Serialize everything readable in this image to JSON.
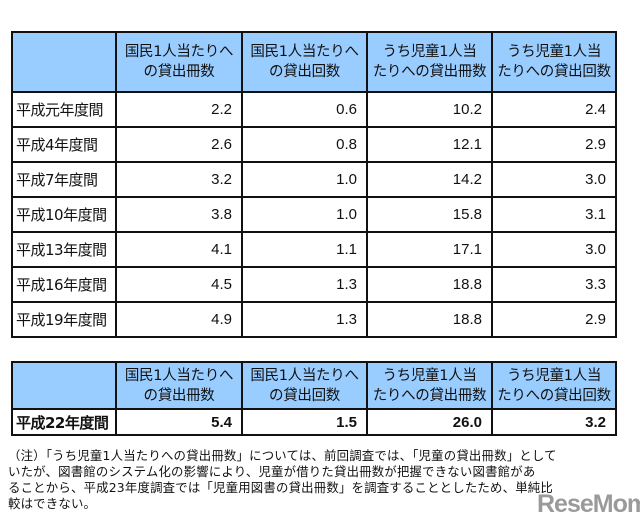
{
  "columns": [
    "",
    "国民1人当たりへの貸出冊数",
    "国民1人当たりへの貸出回数",
    "うち児童1人当たりへの貸出冊数",
    "うち児童1人当たりへの貸出回数"
  ],
  "header_lines": [
    {
      "line1": "",
      "line2": ""
    },
    {
      "line1": "国民1人当たりへ",
      "line2": "の貸出冊数"
    },
    {
      "line1": "国民1人当たりへ",
      "line2": "の貸出回数"
    },
    {
      "line1": "うち児童1人当",
      "line2": "たりへの貸出冊数"
    },
    {
      "line1": "うち児童1人当",
      "line2": "たりへの貸出回数"
    }
  ],
  "main_table": {
    "rows": [
      {
        "period": "平成元年度間",
        "books_per_capita": "2.2",
        "loans_per_capita": "0.6",
        "child_books": "10.2",
        "child_loans": "2.4"
      },
      {
        "period": "平成4年度間",
        "books_per_capita": "2.6",
        "loans_per_capita": "0.8",
        "child_books": "12.1",
        "child_loans": "2.9"
      },
      {
        "period": "平成7年度間",
        "books_per_capita": "3.2",
        "loans_per_capita": "1.0",
        "child_books": "14.2",
        "child_loans": "3.0"
      },
      {
        "period": "平成10年度間",
        "books_per_capita": "3.8",
        "loans_per_capita": "1.0",
        "child_books": "15.8",
        "child_loans": "3.1"
      },
      {
        "period": "平成13年度間",
        "books_per_capita": "4.1",
        "loans_per_capita": "1.1",
        "child_books": "17.1",
        "child_loans": "3.0"
      },
      {
        "period": "平成16年度間",
        "books_per_capita": "4.5",
        "loans_per_capita": "1.3",
        "child_books": "18.8",
        "child_loans": "3.3"
      },
      {
        "period": "平成19年度間",
        "books_per_capita": "4.9",
        "loans_per_capita": "1.3",
        "child_books": "18.8",
        "child_loans": "2.9"
      }
    ]
  },
  "latest_table": {
    "rows": [
      {
        "period": "平成22年度間",
        "books_per_capita": "5.4",
        "loans_per_capita": "1.5",
        "child_books": "26.0",
        "child_loans": "3.2"
      }
    ]
  },
  "note": {
    "lines": [
      "（注）「うち児童1人当たりへの貸出冊数」については、前回調査では、「児童の貸出冊数」として",
      "いたが、図書館のシステム化の影響により、児童が借りた貸出冊数が把握できない図書館があ",
      "ることから、平成23年度調査では「児童用図書の貸出冊数」を調査することとしたため、単純比",
      "較はできない。"
    ]
  },
  "watermark": "ReseMom",
  "colors": {
    "header_bg": "#99ccff",
    "border": "#111111"
  }
}
